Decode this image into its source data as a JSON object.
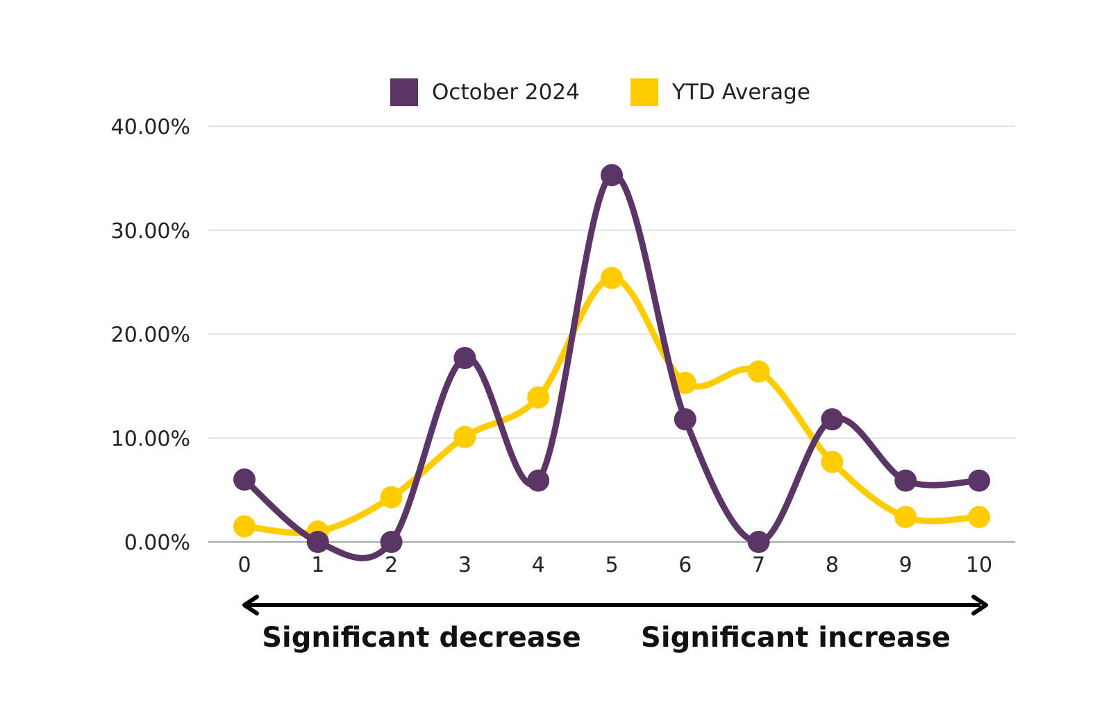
{
  "chart_data": {
    "type": "line",
    "smooth": true,
    "x": [
      "0",
      "1",
      "2",
      "3",
      "4",
      "5",
      "6",
      "7",
      "8",
      "9",
      "10"
    ],
    "series": [
      {
        "name": "October 2024",
        "color": "#5a3566",
        "values": [
          6.0,
          0.0,
          0.0,
          17.7,
          5.9,
          35.3,
          11.8,
          0.0,
          11.8,
          5.9,
          5.9
        ]
      },
      {
        "name": "YTD Average",
        "color": "#ffcc00",
        "values": [
          1.5,
          1.0,
          4.3,
          10.1,
          13.9,
          25.4,
          15.3,
          16.4,
          7.7,
          2.4,
          2.4
        ]
      }
    ],
    "y_ticks": [
      "0.00%",
      "10.00%",
      "20.00%",
      "30.00%",
      "40.00%"
    ],
    "ylim": [
      0,
      40
    ],
    "grid": true,
    "legend_position": "top-center",
    "annotations": {
      "left": "Significant decrease",
      "right": "Significant increase",
      "arrow": "double-headed"
    }
  }
}
